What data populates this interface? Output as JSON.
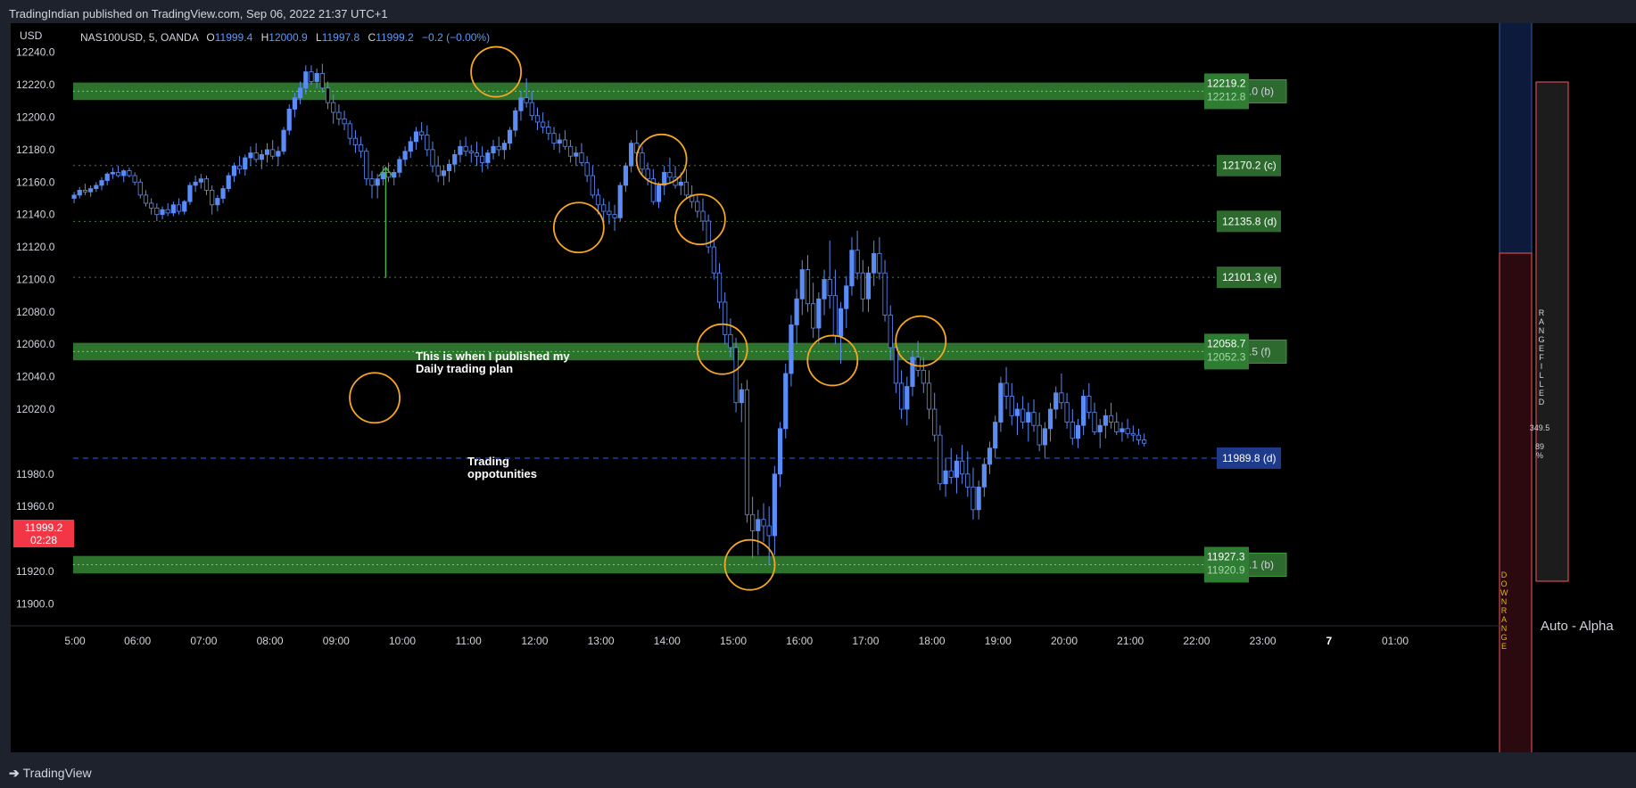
{
  "header": {
    "published": "TradingIndian published on TradingView.com, Sep 06, 2022 21:37 UTC+1"
  },
  "footer": {
    "logo_text": "TradingView"
  },
  "legend": {
    "currency": "USD",
    "symbol": "NAS100USD, 5, OANDA",
    "open_label": "O",
    "open": "11999.4",
    "high_label": "H",
    "high": "12000.9",
    "low_label": "L",
    "low": "11997.8",
    "close_label": "C",
    "close": "11999.2",
    "change": "−0.2 (−0.00%)"
  },
  "price_tag": {
    "price": "11999.2",
    "countdown": "02:28"
  },
  "annotations": {
    "published_note_line1": "This is when I published my",
    "published_note_line2": "Daily trading plan",
    "legend_line1": "Trading",
    "legend_line2": "oppotunities"
  },
  "right_panel": {
    "range_filled": "R A N G E   F I L L E D",
    "range_value": "349.5",
    "range_pct": "89",
    "range_pct_unit": "%",
    "down_range": "D O W N   R A N G E",
    "auto_alpha": "Auto - Alpha"
  },
  "colors": {
    "accent_blue": "#5b9cf6",
    "zone_green": "#3c9a3c",
    "circle_orange": "#f5a623",
    "arrow_green": "#4caf50",
    "price_red": "#f23645"
  },
  "chart_data": {
    "type": "candlestick",
    "symbol": "NAS100USD",
    "timeframe": "5",
    "ylim": [
      11887,
      12258
    ],
    "yticks": [
      12240,
      12220,
      12200,
      12180,
      12160,
      12140,
      12120,
      12100,
      12080,
      12060,
      12040,
      12020,
      11999.2,
      11980,
      11960,
      11940,
      11920,
      11900
    ],
    "x_tick_labels": [
      "06:00",
      "07:00",
      "08:00",
      "09:00",
      "10:00",
      "11:00",
      "12:00",
      "13:00",
      "14:00",
      "15:00",
      "16:00",
      "17:00",
      "18:00",
      "19:00",
      "20:00",
      "21:00",
      "22:00",
      "23:00",
      "7",
      "01:00"
    ],
    "first_tick_partial": "5:00",
    "time_start": "05:00",
    "time_step_min": 5,
    "candles_ohlc": [
      [
        12150,
        12154,
        12147,
        12152
      ],
      [
        12152,
        12157,
        12150,
        12155
      ],
      [
        12155,
        12159,
        12152,
        12154
      ],
      [
        12154,
        12158,
        12151,
        12156
      ],
      [
        12156,
        12160,
        12154,
        12158
      ],
      [
        12158,
        12163,
        12155,
        12161
      ],
      [
        12161,
        12166,
        12158,
        12165
      ],
      [
        12165,
        12169,
        12162,
        12166
      ],
      [
        12166,
        12170,
        12163,
        12164
      ],
      [
        12164,
        12168,
        12160,
        12167
      ],
      [
        12167,
        12169,
        12163,
        12164
      ],
      [
        12164,
        12166,
        12158,
        12160
      ],
      [
        12160,
        12162,
        12150,
        12152
      ],
      [
        12152,
        12155,
        12145,
        12147
      ],
      [
        12147,
        12150,
        12140,
        12144
      ],
      [
        12144,
        12147,
        12136,
        12140
      ],
      [
        12140,
        12145,
        12137,
        12143
      ],
      [
        12143,
        12147,
        12139,
        12141
      ],
      [
        12141,
        12148,
        12139,
        12146
      ],
      [
        12146,
        12150,
        12140,
        12142
      ],
      [
        12142,
        12149,
        12140,
        12148
      ],
      [
        12148,
        12160,
        12146,
        12158
      ],
      [
        12158,
        12164,
        12154,
        12160
      ],
      [
        12160,
        12165,
        12156,
        12162
      ],
      [
        12162,
        12164,
        12152,
        12155
      ],
      [
        12155,
        12158,
        12140,
        12146
      ],
      [
        12146,
        12152,
        12142,
        12150
      ],
      [
        12150,
        12158,
        12147,
        12156
      ],
      [
        12156,
        12166,
        12154,
        12164
      ],
      [
        12164,
        12172,
        12160,
        12170
      ],
      [
        12170,
        12176,
        12165,
        12168
      ],
      [
        12168,
        12177,
        12164,
        12175
      ],
      [
        12175,
        12182,
        12170,
        12178
      ],
      [
        12178,
        12184,
        12172,
        12174
      ],
      [
        12174,
        12180,
        12168,
        12177
      ],
      [
        12177,
        12184,
        12172,
        12180
      ],
      [
        12180,
        12186,
        12174,
        12176
      ],
      [
        12176,
        12182,
        12170,
        12179
      ],
      [
        12179,
        12194,
        12177,
        12192
      ],
      [
        12192,
        12208,
        12189,
        12205
      ],
      [
        12205,
        12215,
        12200,
        12212
      ],
      [
        12212,
        12222,
        12208,
        12218
      ],
      [
        12218,
        12232,
        12214,
        12228
      ],
      [
        12228,
        12232,
        12220,
        12222
      ],
      [
        12222,
        12230,
        12218,
        12227
      ],
      [
        12227,
        12233,
        12215,
        12218
      ],
      [
        12218,
        12222,
        12205,
        12209
      ],
      [
        12209,
        12214,
        12196,
        12203
      ],
      [
        12203,
        12208,
        12195,
        12199
      ],
      [
        12199,
        12204,
        12192,
        12196
      ],
      [
        12196,
        12198,
        12183,
        12187
      ],
      [
        12187,
        12192,
        12178,
        12183
      ],
      [
        12183,
        12188,
        12175,
        12179
      ],
      [
        12179,
        12181,
        12158,
        12162
      ],
      [
        12162,
        12167,
        12150,
        12158
      ],
      [
        12158,
        12165,
        12150,
        12162
      ],
      [
        12162,
        12170,
        12158,
        12166
      ],
      [
        12166,
        12172,
        12160,
        12163
      ],
      [
        12163,
        12168,
        12158,
        12166
      ],
      [
        12166,
        12176,
        12163,
        12174
      ],
      [
        12174,
        12182,
        12170,
        12179
      ],
      [
        12179,
        12188,
        12175,
        12185
      ],
      [
        12185,
        12194,
        12180,
        12191
      ],
      [
        12191,
        12197,
        12186,
        12189
      ],
      [
        12189,
        12195,
        12176,
        12180
      ],
      [
        12180,
        12185,
        12166,
        12170
      ],
      [
        12170,
        12176,
        12160,
        12164
      ],
      [
        12164,
        12170,
        12158,
        12167
      ],
      [
        12167,
        12174,
        12160,
        12171
      ],
      [
        12171,
        12180,
        12166,
        12177
      ],
      [
        12177,
        12186,
        12172,
        12182
      ],
      [
        12182,
        12188,
        12176,
        12179
      ],
      [
        12179,
        12183,
        12172,
        12178
      ],
      [
        12178,
        12185,
        12170,
        12176
      ],
      [
        12176,
        12182,
        12166,
        12172
      ],
      [
        12172,
        12180,
        12168,
        12178
      ],
      [
        12178,
        12186,
        12174,
        12182
      ],
      [
        12182,
        12188,
        12176,
        12180
      ],
      [
        12180,
        12186,
        12174,
        12184
      ],
      [
        12184,
        12194,
        12180,
        12192
      ],
      [
        12192,
        12206,
        12188,
        12204
      ],
      [
        12204,
        12216,
        12198,
        12212
      ],
      [
        12212,
        12224,
        12206,
        12209
      ],
      [
        12209,
        12216,
        12198,
        12201
      ],
      [
        12201,
        12206,
        12192,
        12197
      ],
      [
        12197,
        12203,
        12190,
        12194
      ],
      [
        12194,
        12198,
        12186,
        12190
      ],
      [
        12190,
        12194,
        12180,
        12184
      ],
      [
        12184,
        12190,
        12178,
        12186
      ],
      [
        12186,
        12192,
        12180,
        12182
      ],
      [
        12182,
        12186,
        12172,
        12176
      ],
      [
        12176,
        12182,
        12170,
        12178
      ],
      [
        12178,
        12184,
        12170,
        12172
      ],
      [
        12172,
        12176,
        12160,
        12164
      ],
      [
        12164,
        12170,
        12150,
        12152
      ],
      [
        12152,
        12156,
        12140,
        12146
      ],
      [
        12146,
        12150,
        12136,
        12142
      ],
      [
        12142,
        12148,
        12134,
        12140
      ],
      [
        12140,
        12146,
        12130,
        12138
      ],
      [
        12138,
        12160,
        12136,
        12158
      ],
      [
        12158,
        12172,
        12154,
        12170
      ],
      [
        12170,
        12186,
        12166,
        12184
      ],
      [
        12184,
        12192,
        12176,
        12178
      ],
      [
        12178,
        12182,
        12165,
        12168
      ],
      [
        12168,
        12172,
        12158,
        12162
      ],
      [
        12162,
        12168,
        12146,
        12148
      ],
      [
        12148,
        12160,
        12144,
        12158
      ],
      [
        12158,
        12170,
        12152,
        12166
      ],
      [
        12166,
        12175,
        12160,
        12163
      ],
      [
        12163,
        12170,
        12156,
        12158
      ],
      [
        12158,
        12166,
        12152,
        12160
      ],
      [
        12160,
        12168,
        12150,
        12152
      ],
      [
        12152,
        12158,
        12144,
        12148
      ],
      [
        12148,
        12152,
        12138,
        12142
      ],
      [
        12142,
        12150,
        12130,
        12136
      ],
      [
        12136,
        12140,
        12116,
        12120
      ],
      [
        12120,
        12124,
        12100,
        12104
      ],
      [
        12104,
        12110,
        12082,
        12086
      ],
      [
        12086,
        12092,
        12060,
        12066
      ],
      [
        12066,
        12076,
        12052,
        12058
      ],
      [
        12058,
        12064,
        12018,
        12024
      ],
      [
        12024,
        12036,
        12012,
        12032
      ],
      [
        12032,
        12038,
        11950,
        11955
      ],
      [
        11955,
        11966,
        11928,
        11945
      ],
      [
        11945,
        11958,
        11930,
        11952
      ],
      [
        11952,
        11962,
        11938,
        11948
      ],
      [
        11948,
        11960,
        11924,
        11942
      ],
      [
        11942,
        11985,
        11930,
        11980
      ],
      [
        11980,
        12012,
        11972,
        12008
      ],
      [
        12008,
        12048,
        12002,
        12042
      ],
      [
        12042,
        12078,
        12034,
        12072
      ],
      [
        12072,
        12094,
        12060,
        12088
      ],
      [
        12088,
        12112,
        12078,
        12106
      ],
      [
        12106,
        12115,
        12080,
        12085
      ],
      [
        12085,
        12098,
        12064,
        12070
      ],
      [
        12070,
        12092,
        12060,
        12088
      ],
      [
        12088,
        12106,
        12078,
        12100
      ],
      [
        12100,
        12124,
        12082,
        12090
      ],
      [
        12090,
        12106,
        12060,
        12065
      ],
      [
        12065,
        12086,
        12048,
        12082
      ],
      [
        12082,
        12102,
        12070,
        12096
      ],
      [
        12096,
        12126,
        12090,
        12118
      ],
      [
        12118,
        12130,
        12100,
        12104
      ],
      [
        12104,
        12112,
        12080,
        12088
      ],
      [
        12088,
        12108,
        12080,
        12104
      ],
      [
        12104,
        12124,
        12096,
        12116
      ],
      [
        12116,
        12126,
        12100,
        12104
      ],
      [
        12104,
        12112,
        12074,
        12078
      ],
      [
        12078,
        12084,
        12050,
        12058
      ],
      [
        12058,
        12062,
        12030,
        12036
      ],
      [
        12036,
        12044,
        12014,
        12020
      ],
      [
        12020,
        12040,
        12010,
        12034
      ],
      [
        12034,
        12056,
        12028,
        12052
      ],
      [
        12052,
        12062,
        12040,
        12044
      ],
      [
        12044,
        12052,
        12030,
        12036
      ],
      [
        12036,
        12044,
        12014,
        12020
      ],
      [
        12020,
        12030,
        12000,
        12004
      ],
      [
        12004,
        12010,
        11970,
        11974
      ],
      [
        11974,
        11990,
        11966,
        11982
      ],
      [
        11982,
        11996,
        11974,
        11978
      ],
      [
        11978,
        11992,
        11968,
        11988
      ],
      [
        11988,
        11998,
        11974,
        11980
      ],
      [
        11980,
        11994,
        11966,
        11972
      ],
      [
        11972,
        11984,
        11952,
        11958
      ],
      [
        11958,
        11976,
        11952,
        11972
      ],
      [
        11972,
        11990,
        11966,
        11986
      ],
      [
        11986,
        12000,
        11980,
        11996
      ],
      [
        11996,
        12016,
        11990,
        12012
      ],
      [
        12012,
        12040,
        12006,
        12036
      ],
      [
        12036,
        12046,
        12020,
        12028
      ],
      [
        12028,
        12036,
        12010,
        12016
      ],
      [
        12016,
        12024,
        12004,
        12020
      ],
      [
        12020,
        12028,
        12008,
        12012
      ],
      [
        12012,
        12024,
        12000,
        12018
      ],
      [
        12018,
        12026,
        12006,
        12010
      ],
      [
        12010,
        12018,
        11994,
        11998
      ],
      [
        11998,
        12012,
        11990,
        12008
      ],
      [
        12008,
        12024,
        12000,
        12020
      ],
      [
        12020,
        12034,
        12014,
        12030
      ],
      [
        12030,
        12042,
        12020,
        12024
      ],
      [
        12024,
        12030,
        12008,
        12012
      ],
      [
        12012,
        12020,
        11998,
        12002
      ],
      [
        12002,
        12014,
        11996,
        12010
      ],
      [
        12010,
        12032,
        12004,
        12028
      ],
      [
        12028,
        12036,
        12014,
        12018
      ],
      [
        12018,
        12024,
        12004,
        12006
      ],
      [
        12006,
        12014,
        11996,
        12010
      ],
      [
        12010,
        12020,
        12002,
        12016
      ],
      [
        12016,
        12024,
        12008,
        12012
      ],
      [
        12012,
        12018,
        12004,
        12006
      ],
      [
        12006,
        12012,
        12000,
        12008
      ],
      [
        12008,
        12014,
        12002,
        12005
      ],
      [
        12005,
        12010,
        12000,
        12004
      ],
      [
        12004,
        12008,
        11998,
        12001
      ],
      [
        12001,
        12005,
        11997,
        11999
      ]
    ],
    "levels": [
      {
        "price": 12219.2,
        "price2": 12212.8,
        "label_tail": ".0 (b)",
        "style": "zone"
      },
      {
        "price": 12170.2,
        "label": "12170.2 (c)",
        "style": "dotted"
      },
      {
        "price": 12135.8,
        "label": "12135.8 (d)",
        "style": "dotted"
      },
      {
        "price": 12101.3,
        "label": "12101.3 (e)",
        "style": "dotted"
      },
      {
        "price": 12058.7,
        "price2": 12052.3,
        "label_tail": ".5 (f)",
        "style": "zone"
      },
      {
        "price": 11989.8,
        "label": "11989.8 (d)",
        "style": "dashed-blue"
      },
      {
        "price": 11927.3,
        "price2": 11920.9,
        "label_tail": ".1 (b)",
        "style": "zone"
      }
    ],
    "opportunity_circles": [
      {
        "time": "11:25",
        "price": 12228
      },
      {
        "time": "12:40",
        "price": 12132
      },
      {
        "time": "13:55",
        "price": 12174
      },
      {
        "time": "14:30",
        "price": 12137
      },
      {
        "time": "14:50",
        "price": 12057
      },
      {
        "time": "15:15",
        "price": 11924
      },
      {
        "time": "16:30",
        "price": 12050
      },
      {
        "time": "17:50",
        "price": 12062
      }
    ],
    "legend_circle": {
      "time": "09:35",
      "price": 12027
    },
    "publish_arrow": {
      "time": "09:45",
      "price_from": 12101,
      "price_to": 12169
    }
  }
}
